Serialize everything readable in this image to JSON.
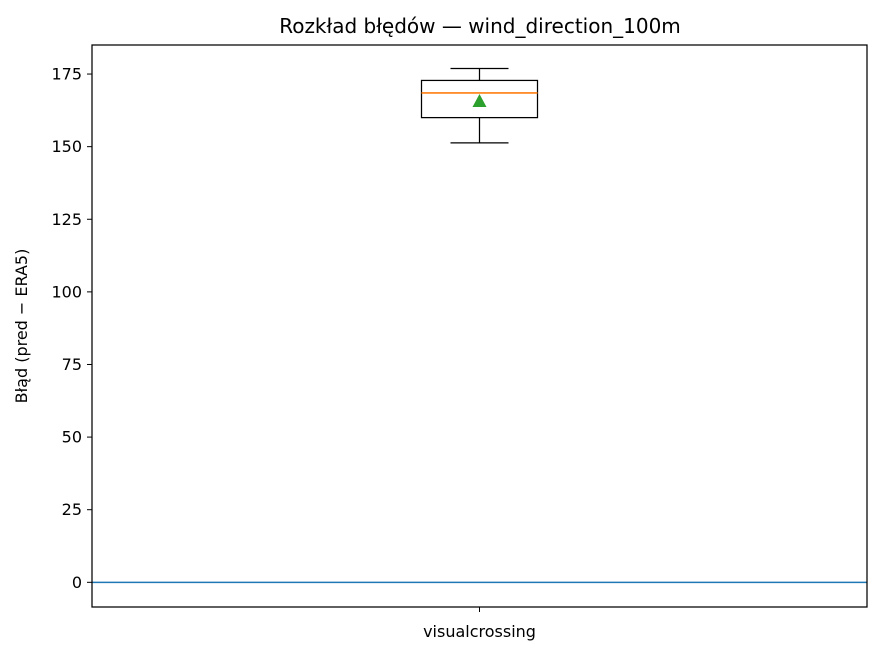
{
  "chart_data": {
    "type": "box",
    "title": "Rozkład błędów — wind_direction_100m",
    "xlabel": "",
    "ylabel": "Błąd (pred − ERA5)",
    "categories": [
      "visualcrossing"
    ],
    "ylim": [
      -8.5,
      185
    ],
    "yticks": [
      0,
      25,
      50,
      75,
      100,
      125,
      150,
      175
    ],
    "boxes": [
      {
        "name": "visualcrossing",
        "whisker_low": 151.3,
        "q1": 160.0,
        "median": 168.5,
        "q3": 172.8,
        "whisker_high": 176.9,
        "mean": 165.7
      }
    ],
    "reference_line": {
      "y": 0,
      "color": "#1f77b4"
    },
    "colors": {
      "box": "#000000",
      "median": "#ff7f0e",
      "mean": "#2ca02c"
    },
    "grid": false,
    "legend": "none"
  }
}
